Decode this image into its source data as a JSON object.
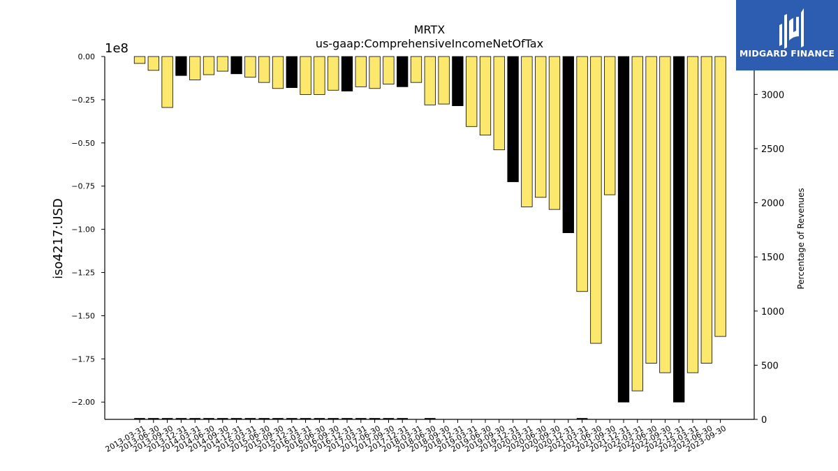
{
  "chart_data": {
    "type": "bar",
    "title": "MRTX",
    "subtitle": "us-gaap:ComprehensiveIncomeNetOfTax",
    "ylabel": "iso4217:USD",
    "y2label": "Percentage of Revenues",
    "yscale_label": "1e8",
    "ylim": [
      -210000000,
      0
    ],
    "y2lim": [
      0,
      3350
    ],
    "yticks": [
      0,
      -25000000,
      -50000000,
      -75000000,
      -100000000,
      -125000000,
      -150000000,
      -175000000,
      -200000000
    ],
    "ytick_labels": [
      "0.00",
      "−0.25",
      "−0.50",
      "−0.75",
      "−1.00",
      "−1.25",
      "−1.50",
      "−1.75",
      "−2.00"
    ],
    "y2ticks": [
      0,
      500,
      1000,
      1500,
      2000,
      2500,
      3000
    ],
    "y2tick_labels": [
      "0",
      "500",
      "1000",
      "1500",
      "2000",
      "2500",
      "3000"
    ],
    "grid": false,
    "colors": {
      "quarter": "#fde86e",
      "fiscal_year": "#000000",
      "edge": "#000000"
    },
    "categories": [
      "2013-03-31",
      "2013-06-30",
      "2013-09-30",
      "2013-12-31",
      "2014-03-31",
      "2014-06-30",
      "2014-09-30",
      "2014-12-31",
      "2015-03-31",
      "2015-06-30",
      "2015-09-30",
      "2015-12-31",
      "2016-03-31",
      "2016-06-30",
      "2016-09-30",
      "2016-12-31",
      "2017-03-31",
      "2017-06-30",
      "2017-09-30",
      "2017-12-31",
      "2018-03-31",
      "2018-06-30",
      "2018-09-30",
      "2018-12-31",
      "2019-03-31",
      "2019-06-30",
      "2019-09-30",
      "2019-12-31",
      "2020-03-31",
      "2020-06-30",
      "2020-09-30",
      "2020-12-31",
      "2021-03-31",
      "2021-06-30",
      "2021-09-30",
      "2021-12-31",
      "2022-03-31",
      "2022-06-30",
      "2022-09-30",
      "2022-12-31",
      "2023-03-31",
      "2023-06-30",
      "2023-09-30"
    ],
    "values": [
      -4000000,
      -8000000,
      -29500000,
      -11000000,
      -13500000,
      -10500000,
      -8500000,
      -10000000,
      -12000000,
      -15000000,
      -18500000,
      -18000000,
      -22000000,
      -22000000,
      -19500000,
      -20000000,
      -17500000,
      -18500000,
      -16000000,
      -17500000,
      -15000000,
      -28000000,
      -27500000,
      -28500000,
      -40500000,
      -45500000,
      -54000000,
      -72500000,
      -87000000,
      -81500000,
      -88500000,
      -102000000,
      -136000000,
      -166000000,
      -80000000,
      -200000000,
      -193500000,
      -177500000,
      -183000000,
      -200000000,
      -183000000,
      -177500000,
      -162000000
    ],
    "annual_flags": [
      false,
      false,
      false,
      true,
      false,
      false,
      false,
      true,
      false,
      false,
      false,
      true,
      false,
      false,
      false,
      true,
      false,
      false,
      false,
      true,
      false,
      false,
      false,
      true,
      false,
      false,
      false,
      true,
      false,
      false,
      false,
      true,
      false,
      false,
      false,
      true,
      false,
      false,
      false,
      true,
      false,
      false,
      false
    ],
    "revenue_pct": [
      12,
      12,
      12,
      12,
      12,
      12,
      12,
      12,
      12,
      12,
      12,
      12,
      12,
      12,
      12,
      12,
      12,
      12,
      12,
      12,
      0,
      12,
      0,
      0,
      0,
      0,
      0,
      0,
      0,
      0,
      0,
      0,
      12,
      0,
      0,
      0,
      0,
      0,
      0,
      0,
      0,
      0,
      0
    ]
  },
  "brand": {
    "name": "MIDGARD FINANCE"
  }
}
